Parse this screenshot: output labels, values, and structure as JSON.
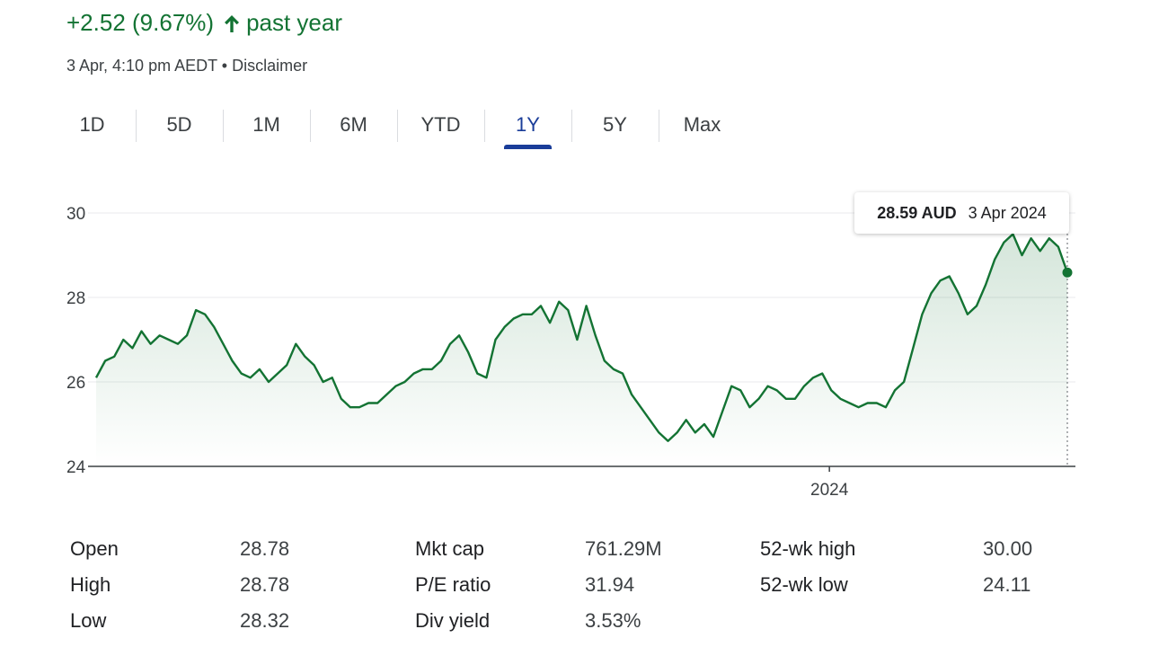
{
  "header": {
    "change_text": "+2.52 (9.67%)",
    "arrow_icon": "arrow-up-icon",
    "period_text": "past year",
    "timestamp": "3 Apr, 4:10 pm AEDT",
    "separator": "•",
    "disclaimer": "Disclaimer",
    "positive_color": "#137333"
  },
  "tabs": [
    {
      "label": "1D",
      "active": false
    },
    {
      "label": "5D",
      "active": false
    },
    {
      "label": "1M",
      "active": false
    },
    {
      "label": "6M",
      "active": false
    },
    {
      "label": "YTD",
      "active": false
    },
    {
      "label": "1Y",
      "active": true
    },
    {
      "label": "5Y",
      "active": false
    },
    {
      "label": "Max",
      "active": false
    }
  ],
  "tooltip": {
    "price": "28.59 AUD",
    "date": "3 Apr 2024"
  },
  "chart_data": {
    "type": "area",
    "ylim": [
      24,
      30
    ],
    "yticks": [
      "30",
      "28",
      "26",
      "24"
    ],
    "xticks": [
      {
        "label": "2024",
        "position": 0.755
      }
    ],
    "line_color": "#137333",
    "values": [
      26.1,
      26.5,
      26.6,
      27.0,
      26.8,
      27.2,
      26.9,
      27.1,
      27.0,
      26.9,
      27.1,
      27.7,
      27.6,
      27.3,
      26.9,
      26.5,
      26.2,
      26.1,
      26.3,
      26.0,
      26.2,
      26.4,
      26.9,
      26.6,
      26.4,
      26.0,
      26.1,
      25.6,
      25.4,
      25.4,
      25.5,
      25.5,
      25.7,
      25.9,
      26.0,
      26.2,
      26.3,
      26.3,
      26.5,
      26.9,
      27.1,
      26.7,
      26.2,
      26.1,
      27.0,
      27.3,
      27.5,
      27.6,
      27.6,
      27.8,
      27.4,
      27.9,
      27.7,
      27.0,
      27.8,
      27.1,
      26.5,
      26.3,
      26.2,
      25.7,
      25.4,
      25.1,
      24.8,
      24.6,
      24.8,
      25.1,
      24.8,
      25.0,
      24.7,
      25.3,
      25.9,
      25.8,
      25.4,
      25.6,
      25.9,
      25.8,
      25.6,
      25.6,
      25.9,
      26.1,
      26.2,
      25.8,
      25.6,
      25.5,
      25.4,
      25.5,
      25.5,
      25.4,
      25.8,
      26.0,
      26.8,
      27.6,
      28.1,
      28.4,
      28.5,
      28.1,
      27.6,
      27.8,
      28.3,
      28.9,
      29.3,
      29.5,
      29.0,
      29.4,
      29.1,
      29.4,
      29.2,
      28.59
    ]
  },
  "stats": [
    {
      "label": "Open",
      "value": "28.78"
    },
    {
      "label": "High",
      "value": "28.78"
    },
    {
      "label": "Low",
      "value": "28.32"
    },
    {
      "label": "Mkt cap",
      "value": "761.29M"
    },
    {
      "label": "P/E ratio",
      "value": "31.94"
    },
    {
      "label": "Div yield",
      "value": "3.53%"
    },
    {
      "label": "52-wk high",
      "value": "30.00"
    },
    {
      "label": "52-wk low",
      "value": "24.11"
    }
  ]
}
